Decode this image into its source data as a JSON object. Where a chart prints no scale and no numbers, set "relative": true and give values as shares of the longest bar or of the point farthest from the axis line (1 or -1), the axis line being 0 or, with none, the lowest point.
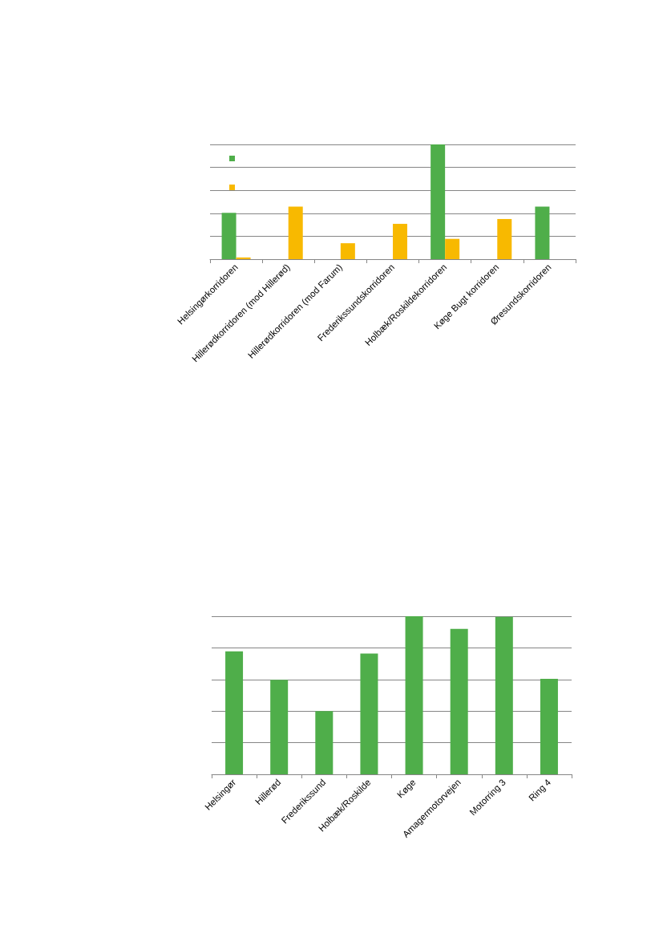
{
  "chart_data": [
    {
      "type": "bar",
      "relative": true,
      "grid": "y",
      "categories": [
        "Helsingørkorridoren",
        "Hillerødkorridoren (mod Hillerød)",
        "Hillerødkorridoren (mod Farum)",
        "Frederikssundskorridoren",
        "Holbæk/Roskildekorridoren",
        "Køge Bugt korridoren",
        "Øresundskorridoren"
      ],
      "series": [
        {
          "color": "#4fae4a",
          "values": [
            0.404,
            null,
            null,
            null,
            1,
            null,
            0.458
          ]
        },
        {
          "color": "#f8b900",
          "values": [
            0.015,
            0.458,
            0.139,
            0.308,
            0.177,
            0.35,
            null
          ]
        }
      ]
    },
    {
      "type": "bar",
      "relative": true,
      "grid": "y",
      "categories": [
        "Helsingør",
        "Hillerød",
        "Frederikssund",
        "Holbæk/Roskilde",
        "Køge",
        "Amagermotorvejen",
        "Motorring 3",
        "Ring 4"
      ],
      "series": [
        {
          "color": "#4fae4a",
          "values": [
            0.778,
            0.598,
            0.4,
            0.764,
            1,
            0.92,
            0.996,
            0.604
          ]
        }
      ]
    }
  ]
}
